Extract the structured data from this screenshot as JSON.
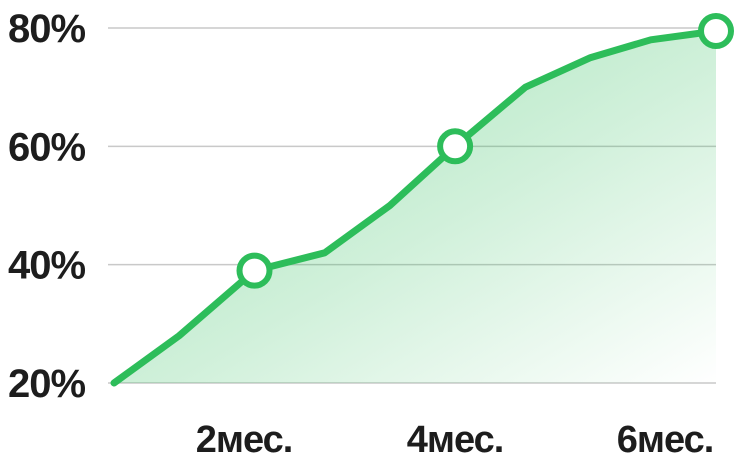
{
  "chart_data": {
    "type": "area",
    "title": "",
    "xlabel": "",
    "ylabel": "",
    "x_unit": "months",
    "x_ticks": [
      {
        "value": 2,
        "label": "2мес."
      },
      {
        "value": 4,
        "label": "4мес."
      },
      {
        "value": 6,
        "label": "6мес."
      }
    ],
    "y_ticks": [
      {
        "value": 20,
        "label": "20%"
      },
      {
        "value": 40,
        "label": "40%"
      },
      {
        "value": 60,
        "label": "60%"
      },
      {
        "value": 80,
        "label": "80%"
      }
    ],
    "xlim": [
      0,
      6
    ],
    "ylim": [
      20,
      80
    ],
    "grid": true,
    "line_color": "#2dbd5a",
    "fill_color": "#2dbd5a",
    "series": [
      {
        "points": [
          {
            "x": 0.0,
            "y": 20
          },
          {
            "x": 0.65,
            "y": 28
          },
          {
            "x": 1.4,
            "y": 39,
            "marker": true
          },
          {
            "x": 2.1,
            "y": 42
          },
          {
            "x": 2.75,
            "y": 50
          },
          {
            "x": 3.4,
            "y": 60,
            "marker": true
          },
          {
            "x": 4.1,
            "y": 70
          },
          {
            "x": 4.75,
            "y": 75
          },
          {
            "x": 5.35,
            "y": 78
          },
          {
            "x": 6.0,
            "y": 79.5,
            "marker": true
          }
        ]
      }
    ]
  }
}
